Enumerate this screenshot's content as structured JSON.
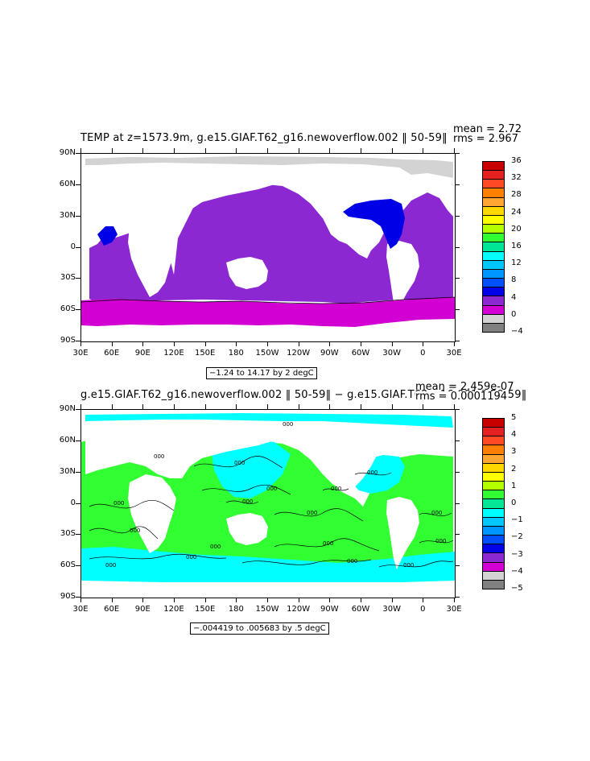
{
  "top": {
    "title": "TEMP at z=1573.9m, g.e15.GIAF.T62_g16.newoverflow.002 ‖ 50-59‖",
    "mean": "mean = 2.72",
    "rms": "rms = 2.967",
    "range": "−1.24 to 14.17 by 2 degC",
    "lat_labels": [
      "90N",
      "60N",
      "30N",
      "0",
      "30S",
      "60S",
      "90S"
    ],
    "lon_labels": [
      "30E",
      "60E",
      "90E",
      "120E",
      "150E",
      "180",
      "150W",
      "120W",
      "90W",
      "60W",
      "30W",
      "0",
      "30E"
    ],
    "colorbar_labels": [
      "36",
      "32",
      "28",
      "24",
      "20",
      "16",
      "12",
      "8",
      "4",
      "0",
      "−4"
    ],
    "colorbar_colors": [
      "#c80000",
      "#e52020",
      "#ff4a24",
      "#ff7f00",
      "#ffa531",
      "#ffd700",
      "#ffff00",
      "#b4ff00",
      "#32ff32",
      "#00e696",
      "#00ffff",
      "#00c8ff",
      "#0096ff",
      "#0050ff",
      "#0000e6",
      "#8c28d2",
      "#d200d2",
      "#d3d3d3",
      "#808080"
    ]
  },
  "bottom": {
    "title": "g.e15.GIAF.T62_g16.newoverflow.002 ‖ 50-59‖ − g.e15.GIAF.T62_g16.001 ‖ 50-59‖",
    "mean": "mean = 2.459e-07",
    "rms": "rms = 0.0001194",
    "range": "−.004419 to .005683 by .5 degC",
    "lat_labels": [
      "90N",
      "60N",
      "30N",
      "0",
      "30S",
      "60S",
      "90S"
    ],
    "lon_labels": [
      "30E",
      "60E",
      "90E",
      "120E",
      "150E",
      "180",
      "150W",
      "120W",
      "90W",
      "60W",
      "30W",
      "0",
      "30E"
    ],
    "colorbar_labels": [
      "5",
      "4",
      "3",
      "2",
      "1",
      "0",
      "−1",
      "−2",
      "−3",
      "−4",
      "−5"
    ],
    "colorbar_colors": [
      "#c80000",
      "#e52020",
      "#ff4a24",
      "#ff7f00",
      "#ffa531",
      "#ffd700",
      "#ffff00",
      "#b4ff00",
      "#32ff32",
      "#00e696",
      "#00ffff",
      "#00c8ff",
      "#0096ff",
      "#0050ff",
      "#0000e6",
      "#8c28d2",
      "#d200d2",
      "#d3d3d3",
      "#808080"
    ],
    "contour_label": "000"
  }
}
